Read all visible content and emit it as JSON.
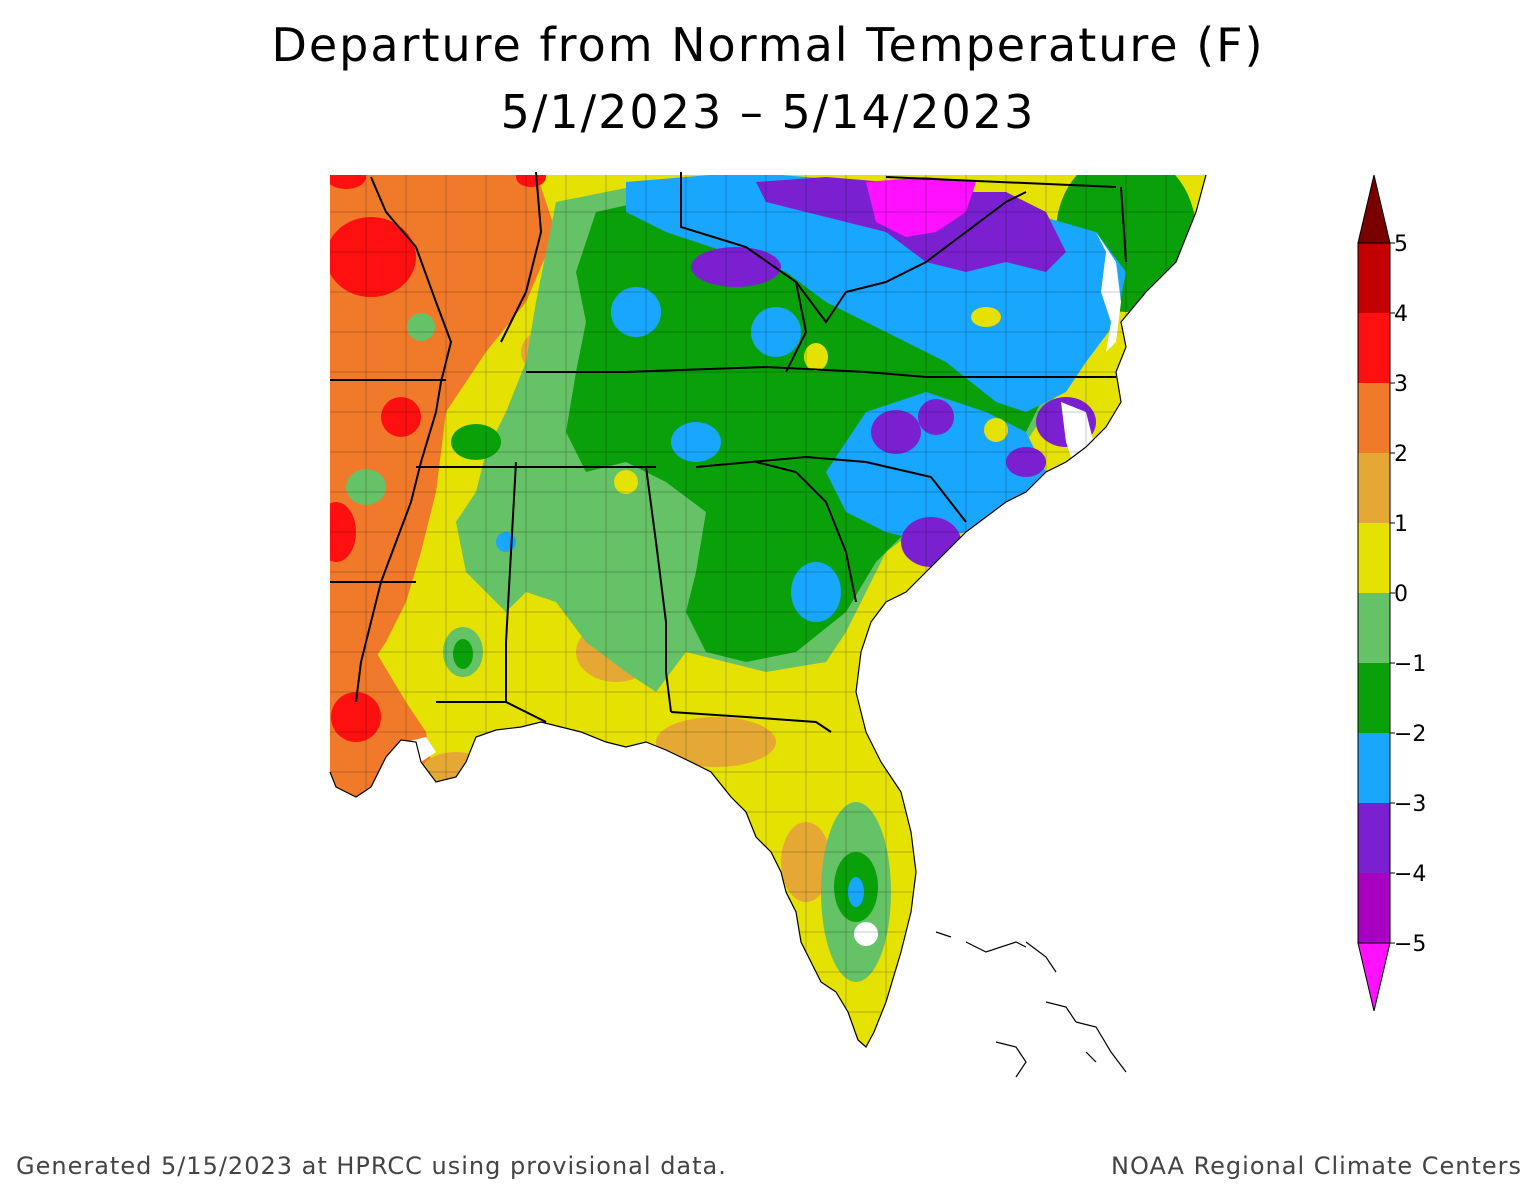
{
  "title": {
    "line1": "Departure from Normal Temperature (F)",
    "line2": "5/1/2023 – 5/14/2023"
  },
  "footer": {
    "left": "Generated 5/15/2023 at HPRCC using provisional data.",
    "right": "NOAA Regional Climate Centers"
  },
  "legend": {
    "tick_labels": [
      "5",
      "4",
      "3",
      "2",
      "1",
      "0",
      "−1",
      "−2",
      "−3",
      "−4",
      "−5"
    ],
    "colors_top_to_bottom": [
      "#7a0000",
      "#c40000",
      "#ff1010",
      "#f07a2a",
      "#e6a834",
      "#e5e100",
      "#66c266",
      "#0aa00a",
      "#18a6ff",
      "#7a20d0",
      "#a800c0",
      "#ff10ff"
    ]
  },
  "map": {
    "region": "Southeast United States",
    "colors": {
      "red": "#ff1010",
      "orange": "#f07a2a",
      "light_orange": "#e6a834",
      "yellow": "#e5e100",
      "light_green": "#66c266",
      "green": "#0aa00a",
      "blue": "#18a6ff",
      "purple": "#7a20d0",
      "magenta": "#ff10ff",
      "water": "#ffffff",
      "border": "#000000"
    }
  }
}
